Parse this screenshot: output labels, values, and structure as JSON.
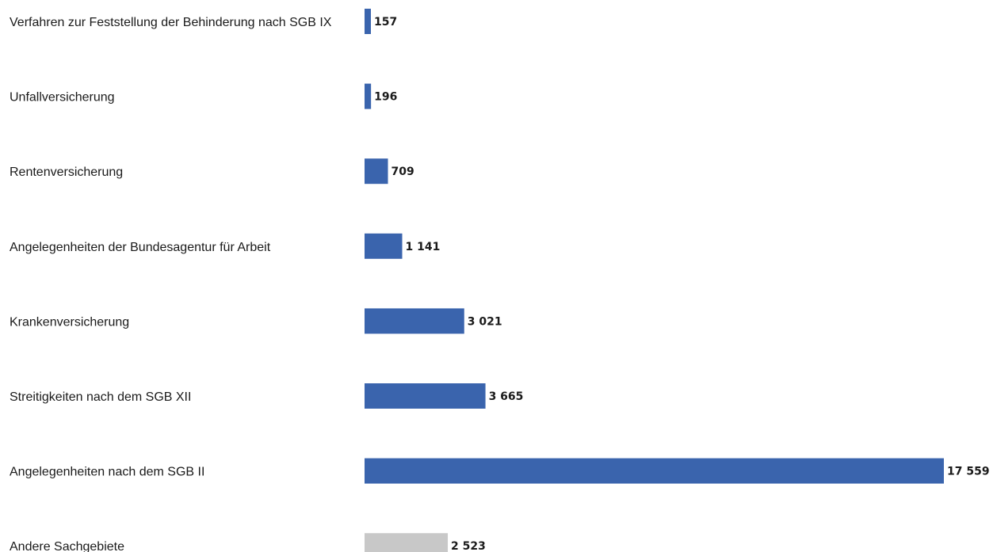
{
  "chart_data": {
    "type": "bar",
    "orientation": "horizontal",
    "title": "",
    "xlabel": "",
    "ylabel": "",
    "grid": false,
    "legend": "none",
    "xlim": [
      0,
      17559
    ],
    "categories": [
      "Verfahren zur Feststellung der Behinderung nach SGB IX",
      "Unfallversicherung",
      "Rentenversicherung",
      "Angelegenheiten der Bundesagentur für Arbeit",
      "Krankenversicherung",
      "Streitigkeiten nach dem SGB XII",
      "Angelegenheiten nach dem SGB II",
      "Andere Sachgebiete"
    ],
    "values": [
      157,
      196,
      709,
      1141,
      3021,
      3665,
      17559,
      2523
    ],
    "value_labels": [
      "157",
      "196",
      "709",
      "1 141",
      "3 021",
      "3 665",
      "17 559",
      "2 523"
    ],
    "bar_colors": [
      "#3a64ad",
      "#3a64ad",
      "#3a64ad",
      "#3a64ad",
      "#3a64ad",
      "#3a64ad",
      "#3a64ad",
      "#c8c8c8"
    ]
  }
}
